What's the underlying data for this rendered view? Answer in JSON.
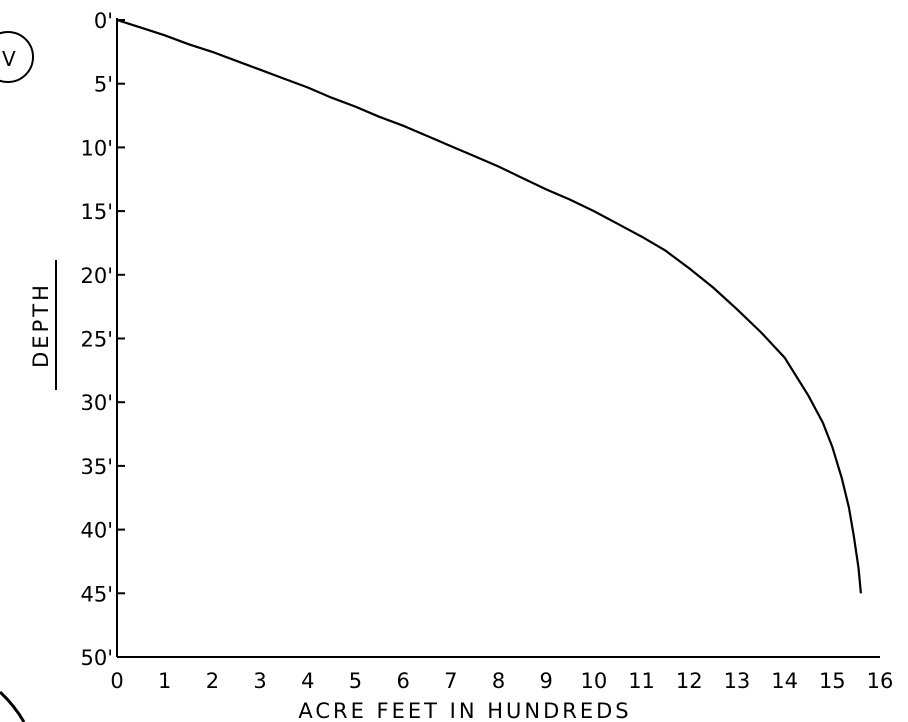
{
  "chart_data": {
    "type": "line",
    "xlabel": "ACRE FEET IN HUNDREDS",
    "ylabel": "DEPTH",
    "xlim": [
      0,
      16
    ],
    "ylim": [
      0,
      50
    ],
    "y_inverted": true,
    "grid": false,
    "x_ticks": [
      "0",
      "1",
      "2",
      "3",
      "4",
      "5",
      "6",
      "7",
      "8",
      "9",
      "10",
      "11",
      "12",
      "13",
      "14",
      "15",
      "16"
    ],
    "y_ticks": [
      "0'",
      "5'",
      "10'",
      "15'",
      "20'",
      "25'",
      "30'",
      "35'",
      "40'",
      "45'",
      "50'"
    ],
    "series": [
      {
        "x": [
          0,
          0.5,
          1,
          1.5,
          2,
          2.5,
          3,
          3.5,
          4,
          4.5,
          5,
          5.5,
          6,
          6.5,
          7,
          7.5,
          8,
          8.5,
          9,
          9.5,
          10,
          10.5,
          11,
          11.5,
          12,
          12.5,
          13,
          13.5,
          14,
          14.5,
          14.8,
          15.0,
          15.2,
          15.35,
          15.45,
          15.55,
          15.6
        ],
        "y": [
          0,
          0.6,
          1.2,
          1.9,
          2.5,
          3.2,
          3.9,
          4.6,
          5.3,
          6.1,
          6.8,
          7.6,
          8.3,
          9.1,
          9.9,
          10.7,
          11.5,
          12.4,
          13.3,
          14.1,
          15.0,
          16.0,
          17.0,
          18.1,
          19.5,
          21.0,
          22.7,
          24.5,
          26.5,
          29.5,
          31.6,
          33.5,
          36.0,
          38.3,
          40.5,
          43.0,
          45.0
        ]
      }
    ]
  },
  "corner_mark": "V"
}
